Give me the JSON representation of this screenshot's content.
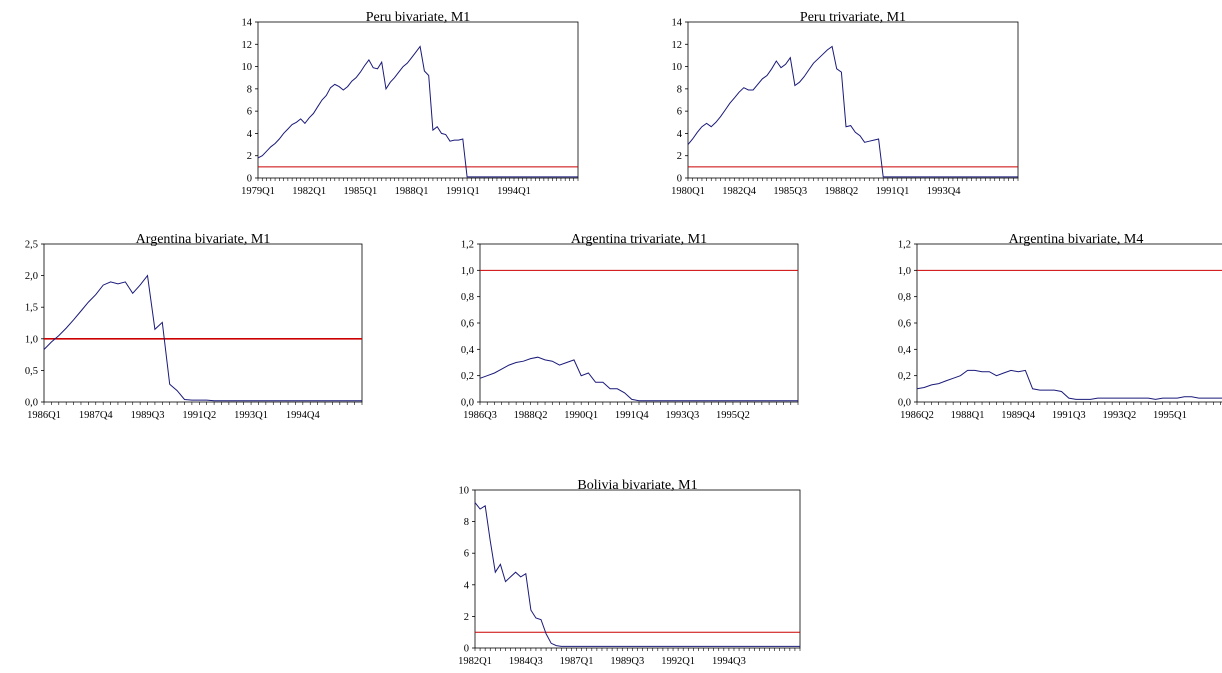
{
  "chart_data": [
    {
      "type": "line",
      "title": "Peru bivariate, M1",
      "ylim": [
        0,
        14
      ],
      "yticks": [
        "0",
        "2",
        "4",
        "6",
        "8",
        "10",
        "12",
        "14"
      ],
      "xticks": [
        "1979Q1",
        "1982Q1",
        "1985Q1",
        "1988Q1",
        "1991Q1",
        "1994Q1"
      ],
      "n": 76,
      "xtick_idx": [
        0,
        12,
        24,
        36,
        48,
        60
      ],
      "reference": 1.0,
      "ref_color": "#cc0000",
      "series_color": "#1a1a7a",
      "values": [
        1.8,
        2.0,
        2.4,
        2.8,
        3.1,
        3.5,
        4.0,
        4.4,
        4.8,
        5.0,
        5.3,
        4.9,
        5.4,
        5.8,
        6.4,
        7.0,
        7.4,
        8.1,
        8.4,
        8.2,
        7.9,
        8.2,
        8.7,
        9.0,
        9.5,
        10.1,
        10.6,
        9.9,
        9.8,
        10.4,
        8.0,
        8.6,
        9.0,
        9.5,
        10.0,
        10.3,
        10.8,
        11.3,
        11.8,
        9.6,
        9.2,
        4.3,
        4.6,
        4.0,
        3.9,
        3.3,
        3.4,
        3.4,
        3.5,
        0.1,
        0.1,
        0.1,
        0.1,
        0.1,
        0.1,
        0.1,
        0.1,
        0.1,
        0.1,
        0.1,
        0.1,
        0.1,
        0.1,
        0.1,
        0.1,
        0.1,
        0.1,
        0.1,
        0.1,
        0.1,
        0.1,
        0.1,
        0.1,
        0.1,
        0.1,
        0.1
      ]
    },
    {
      "type": "line",
      "title": "Peru trivariate, M1",
      "ylim": [
        0,
        14
      ],
      "yticks": [
        "0",
        "2",
        "4",
        "6",
        "8",
        "10",
        "12",
        "14"
      ],
      "xticks": [
        "1980Q1",
        "1982Q4",
        "1985Q3",
        "1988Q2",
        "1991Q1",
        "1993Q4"
      ],
      "n": 72,
      "xtick_idx": [
        0,
        11,
        22,
        33,
        44,
        55
      ],
      "reference": 1.0,
      "ref_color": "#cc0000",
      "series_color": "#1a1a7a",
      "values": [
        3.0,
        3.5,
        4.1,
        4.6,
        4.9,
        4.6,
        5.0,
        5.5,
        6.1,
        6.7,
        7.2,
        7.7,
        8.1,
        7.9,
        7.9,
        8.4,
        8.9,
        9.2,
        9.8,
        10.5,
        9.9,
        10.2,
        10.8,
        8.3,
        8.6,
        9.1,
        9.7,
        10.3,
        10.7,
        11.1,
        11.5,
        11.8,
        9.8,
        9.5,
        4.6,
        4.7,
        4.1,
        3.8,
        3.2,
        3.3,
        3.4,
        3.5,
        0.1,
        0.1,
        0.1,
        0.1,
        0.1,
        0.1,
        0.1,
        0.1,
        0.1,
        0.1,
        0.1,
        0.1,
        0.1,
        0.1,
        0.1,
        0.1,
        0.1,
        0.1,
        0.1,
        0.1,
        0.1,
        0.1,
        0.1,
        0.1,
        0.1,
        0.1,
        0.1,
        0.1,
        0.1,
        0.1
      ]
    },
    {
      "type": "line",
      "title": "Argentina bivariate, M1",
      "ylim": [
        0,
        2.5
      ],
      "yticks": [
        "0,0",
        "0,5",
        "1,0",
        "1,5",
        "2,0",
        "2,5"
      ],
      "xticks": [
        "1986Q1",
        "1987Q4",
        "1989Q3",
        "1991Q2",
        "1993Q1",
        "1994Q4"
      ],
      "n": 44,
      "xtick_idx": [
        0,
        7,
        14,
        21,
        28,
        35
      ],
      "reference": 1.0,
      "ref_color": "#cc0000",
      "series_color": "#1a1a7a",
      "values": [
        0.83,
        0.95,
        1.05,
        1.17,
        1.3,
        1.44,
        1.58,
        1.7,
        1.85,
        1.9,
        1.87,
        1.9,
        1.72,
        1.85,
        2.0,
        1.15,
        1.26,
        0.28,
        0.18,
        0.04,
        0.03,
        0.03,
        0.03,
        0.02,
        0.02,
        0.02,
        0.02,
        0.02,
        0.02,
        0.02,
        0.02,
        0.02,
        0.02,
        0.02,
        0.02,
        0.02,
        0.02,
        0.02,
        0.02,
        0.02,
        0.02,
        0.02,
        0.02,
        0.02
      ]
    },
    {
      "type": "line",
      "title": "Argentina trivariate, M1",
      "ylim": [
        0,
        1.2
      ],
      "yticks": [
        "0,0",
        "0,2",
        "0,4",
        "0,6",
        "0,8",
        "1,0",
        "1,2"
      ],
      "xticks": [
        "1986Q3",
        "1988Q2",
        "1990Q1",
        "1991Q4",
        "1993Q3",
        "1995Q2"
      ],
      "n": 45,
      "xtick_idx": [
        0,
        7,
        14,
        21,
        28,
        35
      ],
      "reference": 1.0,
      "ref_color": "#cc0000",
      "series_color": "#1a1a7a",
      "values": [
        0.18,
        0.2,
        0.22,
        0.25,
        0.28,
        0.3,
        0.31,
        0.33,
        0.34,
        0.32,
        0.31,
        0.28,
        0.3,
        0.32,
        0.2,
        0.22,
        0.15,
        0.15,
        0.1,
        0.1,
        0.07,
        0.02,
        0.01,
        0.01,
        0.01,
        0.01,
        0.01,
        0.01,
        0.01,
        0.01,
        0.01,
        0.01,
        0.01,
        0.01,
        0.01,
        0.01,
        0.01,
        0.01,
        0.01,
        0.01,
        0.01,
        0.01,
        0.01,
        0.01,
        0.01
      ]
    },
    {
      "type": "line",
      "title": "Argentina bivariate, M4",
      "ylim": [
        0,
        1.2
      ],
      "yticks": [
        "0,0",
        "0,2",
        "0,4",
        "0,6",
        "0,8",
        "1,0",
        "1,2"
      ],
      "xticks": [
        "1986Q2",
        "1988Q1",
        "1989Q4",
        "1991Q3",
        "1993Q2",
        "1995Q1"
      ],
      "n": 45,
      "xtick_idx": [
        0,
        7,
        14,
        21,
        28,
        35
      ],
      "reference": 1.0,
      "ref_color": "#cc0000",
      "series_color": "#1a1a7a",
      "values": [
        0.1,
        0.11,
        0.13,
        0.14,
        0.16,
        0.18,
        0.2,
        0.24,
        0.24,
        0.23,
        0.23,
        0.2,
        0.22,
        0.24,
        0.23,
        0.24,
        0.1,
        0.09,
        0.09,
        0.09,
        0.08,
        0.03,
        0.02,
        0.02,
        0.02,
        0.03,
        0.03,
        0.03,
        0.03,
        0.03,
        0.03,
        0.03,
        0.03,
        0.02,
        0.03,
        0.03,
        0.03,
        0.04,
        0.04,
        0.03,
        0.03,
        0.03,
        0.03,
        0.03,
        0.03
      ]
    },
    {
      "type": "line",
      "title": "Bolivia bivariate, M1",
      "ylim": [
        0,
        10
      ],
      "yticks": [
        "0",
        "2",
        "4",
        "6",
        "8",
        "10"
      ],
      "xticks": [
        "1982Q1",
        "1984Q3",
        "1987Q1",
        "1989Q3",
        "1992Q1",
        "1994Q3"
      ],
      "n": 65,
      "xtick_idx": [
        0,
        10,
        20,
        30,
        40,
        50
      ],
      "reference": 1.0,
      "ref_color": "#cc0000",
      "series_color": "#1a1a7a",
      "values": [
        9.2,
        8.8,
        9.0,
        6.8,
        4.8,
        5.3,
        4.2,
        4.5,
        4.8,
        4.5,
        4.7,
        2.4,
        1.9,
        1.8,
        0.9,
        0.3,
        0.15,
        0.1,
        0.1,
        0.1,
        0.1,
        0.1,
        0.1,
        0.1,
        0.1,
        0.1,
        0.1,
        0.1,
        0.1,
        0.1,
        0.1,
        0.1,
        0.1,
        0.1,
        0.1,
        0.1,
        0.1,
        0.1,
        0.1,
        0.1,
        0.1,
        0.1,
        0.1,
        0.1,
        0.1,
        0.1,
        0.1,
        0.1,
        0.1,
        0.1,
        0.1,
        0.1,
        0.1,
        0.1,
        0.1,
        0.1,
        0.1,
        0.1,
        0.1,
        0.1,
        0.1,
        0.1,
        0.1,
        0.1,
        0.1
      ]
    }
  ]
}
